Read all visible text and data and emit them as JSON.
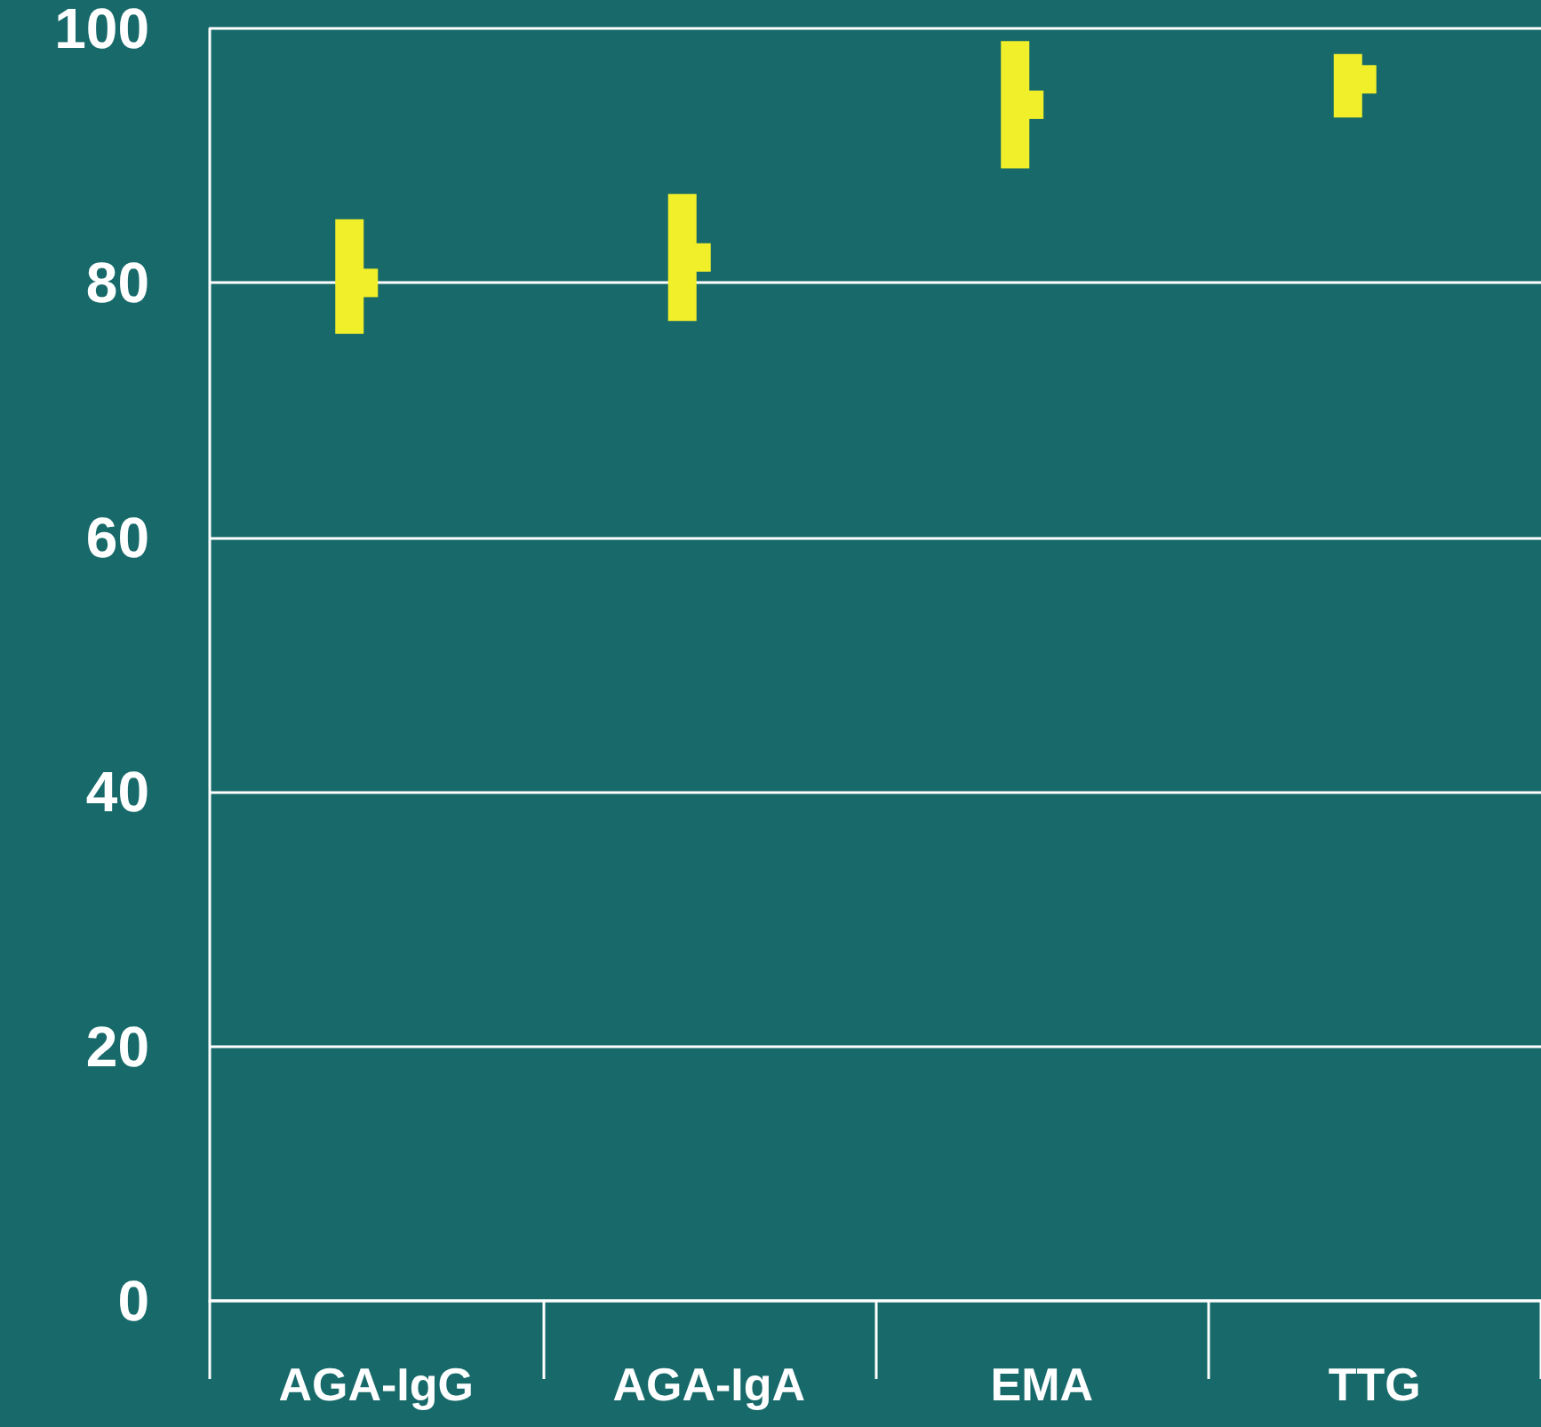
{
  "chart_data": {
    "type": "bar",
    "categories": [
      "AGA-IgG",
      "AGA-IgA",
      "EMA",
      "TTG"
    ],
    "series": [
      {
        "color": "#f0ef2a",
        "base": [
          76,
          77,
          89,
          93
        ],
        "values": [
          9,
          10,
          10,
          5
        ]
      },
      {
        "type": "scatter",
        "color": "#f0ef2a",
        "marker": "square",
        "values": [
          80,
          82,
          94,
          96
        ]
      }
    ],
    "ylim": [
      0,
      100
    ],
    "yticks": [
      0,
      20,
      40,
      60,
      80,
      100
    ],
    "grid": "y"
  }
}
